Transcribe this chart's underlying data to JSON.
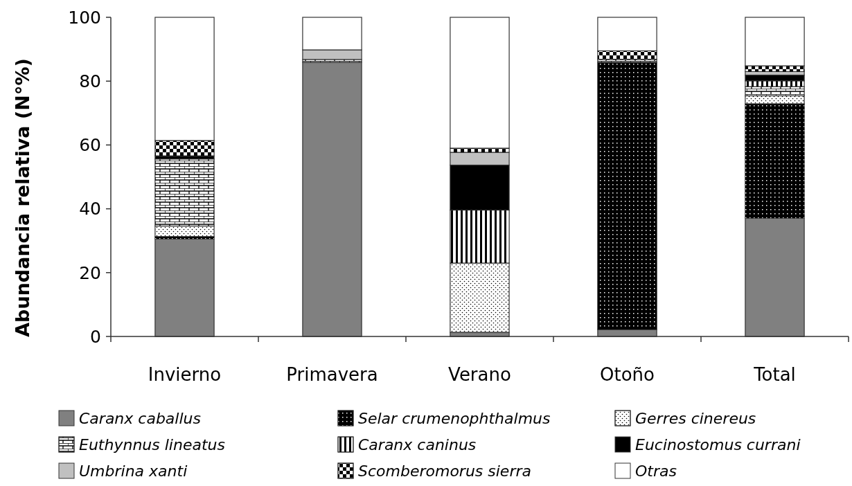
{
  "chart_data": {
    "type": "bar",
    "stacked": true,
    "ylabel": "Abundancia relativa (N°%)",
    "categories": [
      "Invierno",
      "Primavera",
      "Verano",
      "Otoño",
      "Total"
    ],
    "ylim": [
      0,
      100
    ],
    "yticks": [
      0,
      20,
      40,
      60,
      80,
      100
    ],
    "grid": false,
    "legend": "bottom",
    "series": [
      {
        "name": "Caranx caballus",
        "color": "#808080",
        "values": [
          30.6,
          85.9,
          1.3,
          2.2,
          37.1
        ]
      },
      {
        "name": "Selar crumenophthalmus",
        "color": "#000000",
        "values": [
          0.7,
          0,
          0,
          83.7,
          35.8
        ]
      },
      {
        "name": "Gerres cinereus",
        "color": "#ffffff",
        "values": [
          3.3,
          0,
          21.7,
          0,
          2.5
        ]
      },
      {
        "name": "Euthynnus lineatus",
        "color": "#ffffff",
        "values": [
          21,
          0.9,
          0,
          0.9,
          2.9
        ]
      },
      {
        "name": "Caranx caninus",
        "color": "#ffffff",
        "values": [
          0,
          0,
          16.6,
          0,
          1.8
        ]
      },
      {
        "name": "Eucinostomus currani",
        "color": "#000000",
        "values": [
          1,
          0,
          14.1,
          0,
          1.8
        ]
      },
      {
        "name": "Umbrina xanti",
        "color": "#c0c0c0",
        "values": [
          0,
          3,
          4,
          0,
          1.1
        ]
      },
      {
        "name": "Scomberomorus sierra",
        "color": "#ffffff",
        "values": [
          4.8,
          0,
          1.3,
          2.7,
          1.8
        ]
      },
      {
        "name": "Otras",
        "color": "#ffffff",
        "values": [
          38.6,
          10.2,
          41,
          10.5,
          15.2
        ]
      }
    ]
  }
}
